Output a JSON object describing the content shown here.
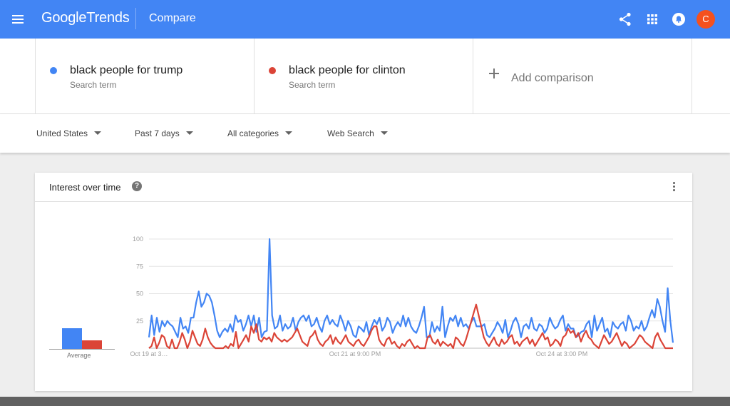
{
  "header": {
    "logo_brand": "Google",
    "logo_product": "Trends",
    "page_name": "Compare",
    "avatar_letter": "C",
    "icons": [
      "menu-icon",
      "share-icon",
      "apps-grid-icon",
      "notifications-icon"
    ],
    "brand_color": "#4285f4"
  },
  "terms": [
    {
      "title": "black people for trump",
      "subtitle": "Search term",
      "color": "#4285f4"
    },
    {
      "title": "black people for clinton",
      "subtitle": "Search term",
      "color": "#db4437"
    }
  ],
  "add_comparison": {
    "label": "Add comparison"
  },
  "filters": {
    "region": "United States",
    "period": "Past 7 days",
    "category": "All categories",
    "property": "Web Search"
  },
  "card": {
    "title": "Interest over time",
    "help_glyph": "?",
    "average_label": "Average"
  },
  "chart_data": {
    "type": "line",
    "yticks": [
      100,
      75,
      50,
      25
    ],
    "ylim": [
      0,
      100
    ],
    "grid": true,
    "xtick_labels": [
      "Oct 19 at 3…",
      "Oct 21 at 9:00 PM",
      "Oct 24 at 3:00 PM"
    ],
    "averages": [
      {
        "name": "black people for trump",
        "value": 19,
        "color": "#4285f4"
      },
      {
        "name": "black people for clinton",
        "value": 8,
        "color": "#db4437"
      }
    ],
    "series": [
      {
        "name": "black people for trump",
        "color": "#4285f4",
        "values": [
          10,
          30,
          12,
          28,
          15,
          25,
          20,
          25,
          22,
          20,
          15,
          10,
          28,
          18,
          20,
          14,
          28,
          28,
          42,
          52,
          38,
          42,
          50,
          48,
          42,
          30,
          16,
          10,
          15,
          18,
          15,
          22,
          15,
          30,
          24,
          26,
          16,
          22,
          30,
          20,
          30,
          15,
          28,
          10,
          15,
          16,
          100,
          30,
          18,
          20,
          30,
          16,
          22,
          18,
          20,
          28,
          16,
          24,
          28,
          30,
          25,
          30,
          20,
          22,
          28,
          20,
          15,
          25,
          30,
          22,
          26,
          22,
          20,
          30,
          24,
          16,
          25,
          20,
          12,
          10,
          20,
          18,
          15,
          24,
          12,
          20,
          26,
          22,
          28,
          16,
          20,
          28,
          24,
          14,
          20,
          24,
          20,
          30,
          20,
          28,
          20,
          16,
          14,
          20,
          28,
          38,
          10,
          10,
          24,
          15,
          20,
          16,
          38,
          10,
          20,
          28,
          25,
          30,
          20,
          28,
          20,
          22,
          18,
          24,
          28,
          20,
          20,
          20,
          22,
          12,
          10,
          14,
          18,
          24,
          20,
          14,
          26,
          10,
          16,
          24,
          28,
          22,
          10,
          20,
          22,
          18,
          28,
          18,
          16,
          22,
          20,
          14,
          18,
          28,
          22,
          18,
          20,
          26,
          30,
          16,
          22,
          18,
          18,
          10,
          12,
          15,
          16,
          22,
          25,
          10,
          30,
          16,
          22,
          28,
          15,
          18,
          10,
          24,
          20,
          18,
          22,
          24,
          16,
          30,
          25,
          16,
          20,
          18,
          25,
          16,
          20,
          28,
          35,
          28,
          45,
          38,
          25,
          15,
          55,
          25,
          5
        ],
        "notes": "peak 100 near Oct 21; peak ~62 near Oct 24"
      },
      {
        "name": "black people for clinton",
        "color": "#db4437",
        "values": [
          0,
          2,
          10,
          0,
          5,
          12,
          10,
          2,
          0,
          8,
          0,
          0,
          6,
          14,
          8,
          0,
          6,
          16,
          10,
          4,
          2,
          8,
          18,
          10,
          5,
          2,
          0,
          0,
          0,
          0,
          2,
          0,
          4,
          2,
          15,
          0,
          4,
          8,
          12,
          6,
          20,
          14,
          22,
          8,
          6,
          10,
          8,
          10,
          6,
          14,
          10,
          8,
          6,
          8,
          6,
          8,
          10,
          14,
          18,
          12,
          6,
          4,
          2,
          10,
          12,
          16,
          8,
          4,
          2,
          6,
          8,
          12,
          4,
          10,
          6,
          4,
          8,
          12,
          6,
          4,
          2,
          6,
          8,
          4,
          2,
          6,
          10,
          16,
          20,
          20,
          8,
          4,
          2,
          8,
          10,
          4,
          6,
          2,
          0,
          4,
          2,
          6,
          8,
          4,
          0,
          2,
          0,
          0,
          0,
          10,
          12,
          6,
          4,
          8,
          2,
          6,
          4,
          2,
          4,
          0,
          10,
          8,
          4,
          2,
          8,
          16,
          24,
          32,
          40,
          30,
          20,
          10,
          5,
          2,
          6,
          10,
          4,
          2,
          8,
          4,
          6,
          10,
          12,
          4,
          6,
          2,
          6,
          8,
          10,
          4,
          8,
          2,
          6,
          10,
          14,
          8,
          10,
          2,
          4,
          8,
          6,
          2,
          10,
          12,
          18,
          14,
          16,
          10,
          14,
          6,
          12,
          16,
          10,
          8,
          4,
          2,
          0,
          6,
          12,
          8,
          4,
          6,
          10,
          14,
          8,
          2,
          6,
          4,
          0,
          2,
          4,
          8,
          12,
          10,
          6,
          4,
          2,
          0,
          10,
          14,
          8,
          4,
          0,
          0,
          0,
          0
        ]
      }
    ]
  }
}
